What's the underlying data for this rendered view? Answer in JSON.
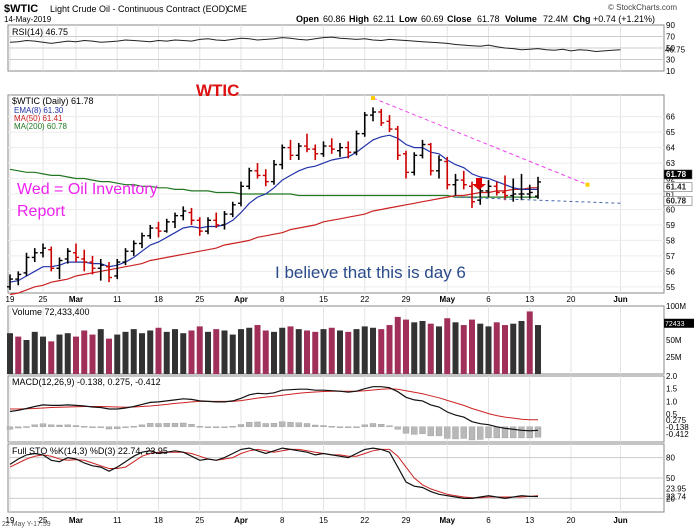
{
  "header": {
    "symbol": "$WTIC",
    "name": "Light Crude Oil - Continuous Contract (EOD)",
    "exchange": "CME",
    "date": "14-May-2019",
    "open_label": "Open",
    "open": "60.86",
    "high_label": "High",
    "high": "62.11",
    "low_label": "Low",
    "low": "60.69",
    "close_label": "Close",
    "close": "61.78",
    "volume_label": "Volume",
    "volume": "72.4M",
    "chg_label": "Chg",
    "chg": "+0.74 (+1.21%)",
    "credit": "© StockCharts.com",
    "footer_date": "22 May Y-17:59"
  },
  "annotations": {
    "wtic": "WTIC",
    "wed": "Wed = Oil Inventory",
    "report": "Report",
    "day6": "I believe that this is day 6"
  },
  "colors": {
    "up_bar": "#000000",
    "down_bar": "#cc0000",
    "ema8": "#2233aa",
    "ma50": "#cc2222",
    "ma200": "#227722",
    "vol_up": "#333333",
    "vol_down": "#a0305a",
    "trendline": "#ee44ee",
    "support": "#4466aa",
    "arrow": "#dd0000"
  },
  "chart_data": [
    {
      "type": "line",
      "title": "RSI(14) 46.75",
      "ylim": [
        10,
        90
      ],
      "y_ticks": [
        "90",
        "70",
        "50",
        "30",
        "10"
      ],
      "current_label": "46.75",
      "x": [
        0,
        1,
        2,
        3,
        4,
        5,
        6,
        7,
        8,
        9,
        10,
        11,
        12,
        13,
        14,
        15,
        16,
        17,
        18,
        19,
        20,
        21,
        22,
        23,
        24,
        25,
        26,
        27,
        28,
        29,
        30,
        31,
        32,
        33,
        34,
        35,
        36,
        37,
        38,
        39,
        40,
        41,
        42,
        43,
        44,
        45,
        46,
        47,
        48,
        49,
        50,
        51,
        52,
        53,
        54,
        55,
        56,
        57,
        58,
        59,
        60,
        61,
        62,
        63,
        64,
        65,
        66,
        67,
        68,
        69,
        70,
        71,
        72,
        73,
        74
      ],
      "values": [
        60,
        61,
        63,
        62,
        60,
        58,
        60,
        62,
        61,
        63,
        62,
        60,
        61,
        62,
        64,
        63,
        62,
        61,
        63,
        62,
        64,
        63,
        62,
        65,
        66,
        64,
        63,
        65,
        67,
        66,
        64,
        65,
        66,
        68,
        67,
        65,
        64,
        66,
        68,
        69,
        67,
        66,
        65,
        66,
        64,
        63,
        65,
        64,
        63,
        62,
        61,
        60,
        59,
        58,
        56,
        55,
        54,
        53,
        55,
        52,
        50,
        49,
        47,
        48,
        49,
        47,
        46,
        48,
        45,
        47,
        46,
        44,
        45,
        46,
        47
      ]
    },
    {
      "type": "bar",
      "title": "$WTIC (Daily) 61.78",
      "legend": [
        "EMA(8) 61.30",
        "MA(50) 61.41",
        "MA(200) 60.78"
      ],
      "ylim": [
        54.6,
        67.4
      ],
      "y_ticks": [
        "66",
        "65",
        "64",
        "63",
        "62",
        "61",
        "60",
        "59",
        "58",
        "57",
        "56",
        "55"
      ],
      "price_labels": [
        "61.78",
        "61.41",
        "60.78"
      ],
      "x_labels": [
        "19",
        "25",
        "Mar",
        "11",
        "18",
        "25",
        "Apr",
        "8",
        "15",
        "22",
        "29",
        "May",
        "6",
        "13",
        "20",
        "Jun"
      ],
      "x_label_index": [
        0,
        4,
        8,
        13,
        18,
        23,
        28,
        33,
        38,
        43,
        48,
        53,
        58,
        63,
        68,
        74
      ],
      "ohlc": [
        [
          55.0,
          55.8,
          54.8,
          55.5
        ],
        [
          55.5,
          56.0,
          55.1,
          55.8
        ],
        [
          55.9,
          57.2,
          55.7,
          56.9
        ],
        [
          56.9,
          57.5,
          56.6,
          57.2
        ],
        [
          57.2,
          57.8,
          56.9,
          57.5
        ],
        [
          57.4,
          57.6,
          56.0,
          56.2
        ],
        [
          56.2,
          56.9,
          55.5,
          56.7
        ],
        [
          56.8,
          57.5,
          56.5,
          57.3
        ],
        [
          57.2,
          57.8,
          56.6,
          56.9
        ],
        [
          56.8,
          57.4,
          56.0,
          56.6
        ],
        [
          56.6,
          57.0,
          55.8,
          56.2
        ],
        [
          56.2,
          56.8,
          55.4,
          56.4
        ],
        [
          56.3,
          56.6,
          55.3,
          55.6
        ],
        [
          55.7,
          56.8,
          55.5,
          56.6
        ],
        [
          56.6,
          57.5,
          56.4,
          57.3
        ],
        [
          57.3,
          58.0,
          57.0,
          57.8
        ],
        [
          57.8,
          58.5,
          57.5,
          58.3
        ],
        [
          58.3,
          59.0,
          58.1,
          58.8
        ],
        [
          58.8,
          59.2,
          58.2,
          58.6
        ],
        [
          58.6,
          59.4,
          58.5,
          59.2
        ],
        [
          59.2,
          59.8,
          58.8,
          59.6
        ],
        [
          59.6,
          60.2,
          59.3,
          59.9
        ],
        [
          59.8,
          60.1,
          59.0,
          59.3
        ],
        [
          59.3,
          59.5,
          58.3,
          58.6
        ],
        [
          58.6,
          59.5,
          58.4,
          59.3
        ],
        [
          59.3,
          59.8,
          58.8,
          59.0
        ],
        [
          59.0,
          59.9,
          58.7,
          59.7
        ],
        [
          59.7,
          60.5,
          59.5,
          60.3
        ],
        [
          60.4,
          61.8,
          60.2,
          61.5
        ],
        [
          61.5,
          62.7,
          61.3,
          62.5
        ],
        [
          62.5,
          63.0,
          62.0,
          62.2
        ],
        [
          62.2,
          62.6,
          61.5,
          61.8
        ],
        [
          61.8,
          63.2,
          61.6,
          62.9
        ],
        [
          62.9,
          64.2,
          62.6,
          64.0
        ],
        [
          64.0,
          64.5,
          63.2,
          63.5
        ],
        [
          63.5,
          64.3,
          63.2,
          64.1
        ],
        [
          64.1,
          64.9,
          63.7,
          63.9
        ],
        [
          63.9,
          64.2,
          63.2,
          63.6
        ],
        [
          63.6,
          64.4,
          63.4,
          64.1
        ],
        [
          64.1,
          64.6,
          63.6,
          63.9
        ],
        [
          63.8,
          64.3,
          63.4,
          64.0
        ],
        [
          64.0,
          64.4,
          63.3,
          63.7
        ],
        [
          63.7,
          65.1,
          63.5,
          64.9
        ],
        [
          64.9,
          66.3,
          64.7,
          66.1
        ],
        [
          66.1,
          66.6,
          65.7,
          66.3
        ],
        [
          66.3,
          66.5,
          65.4,
          65.6
        ],
        [
          65.7,
          66.1,
          65.0,
          65.2
        ],
        [
          65.2,
          65.4,
          63.2,
          63.5
        ],
        [
          63.6,
          63.8,
          62.0,
          62.4
        ],
        [
          62.4,
          63.7,
          62.2,
          63.5
        ],
        [
          63.5,
          64.5,
          63.3,
          64.2
        ],
        [
          64.2,
          64.3,
          62.2,
          62.5
        ],
        [
          62.5,
          63.5,
          62.0,
          63.2
        ],
        [
          63.1,
          63.4,
          61.3,
          61.6
        ],
        [
          61.6,
          62.3,
          60.9,
          61.9
        ],
        [
          61.9,
          62.5,
          61.3,
          61.6
        ],
        [
          61.5,
          61.8,
          60.1,
          60.5
        ],
        [
          60.6,
          61.5,
          60.3,
          61.2
        ],
        [
          61.2,
          61.9,
          60.8,
          61.5
        ],
        [
          61.5,
          61.8,
          60.9,
          61.1
        ],
        [
          61.1,
          62.2,
          60.6,
          60.9
        ],
        [
          60.9,
          62.0,
          60.5,
          61.0
        ],
        [
          61.0,
          62.3,
          60.6,
          61.0
        ],
        [
          61.0,
          61.6,
          60.7,
          61.1
        ],
        [
          60.86,
          62.11,
          60.69,
          61.78
        ]
      ],
      "ema8": [
        55.3,
        55.4,
        55.7,
        56.0,
        56.3,
        56.3,
        56.4,
        56.6,
        56.6,
        56.6,
        56.5,
        56.5,
        56.3,
        56.4,
        56.6,
        56.9,
        57.3,
        57.7,
        57.9,
        58.2,
        58.5,
        58.8,
        58.9,
        58.8,
        58.9,
        58.9,
        59.0,
        59.3,
        59.8,
        60.4,
        60.8,
        61.0,
        61.4,
        61.9,
        62.2,
        62.5,
        62.7,
        62.8,
        63.0,
        63.2,
        63.3,
        63.4,
        63.7,
        64.1,
        64.5,
        64.7,
        64.8,
        64.6,
        64.2,
        64.0,
        64.0,
        63.7,
        63.6,
        63.2,
        62.9,
        62.7,
        62.3,
        62.1,
        62.0,
        61.8,
        61.6,
        61.4,
        61.3,
        61.3,
        61.3
      ],
      "ma50": [
        54.5,
        54.6,
        54.8,
        55.0,
        55.1,
        55.3,
        55.4,
        55.5,
        55.7,
        55.8,
        55.9,
        56.0,
        56.1,
        56.2,
        56.3,
        56.4,
        56.5,
        56.7,
        56.8,
        56.9,
        57.0,
        57.1,
        57.2,
        57.3,
        57.4,
        57.5,
        57.7,
        57.8,
        57.9,
        58.0,
        58.2,
        58.3,
        58.4,
        58.5,
        58.7,
        58.8,
        58.9,
        59.0,
        59.2,
        59.3,
        59.4,
        59.5,
        59.6,
        59.7,
        59.9,
        60.0,
        60.1,
        60.2,
        60.3,
        60.4,
        60.5,
        60.6,
        60.7,
        60.8,
        60.9,
        60.9,
        61.0,
        61.1,
        61.1,
        61.2,
        61.2,
        61.3,
        61.3,
        61.4,
        61.41
      ],
      "ma200": [
        62.6,
        62.5,
        62.4,
        62.4,
        62.3,
        62.2,
        62.2,
        62.1,
        62.0,
        62.0,
        61.9,
        61.8,
        61.8,
        61.7,
        61.6,
        61.6,
        61.5,
        61.5,
        61.4,
        61.4,
        61.3,
        61.3,
        61.2,
        61.2,
        61.2,
        61.1,
        61.1,
        61.1,
        61.0,
        61.0,
        61.0,
        61.0,
        61.0,
        61.0,
        61.0,
        60.9,
        60.9,
        60.9,
        60.9,
        60.9,
        60.9,
        60.9,
        60.9,
        60.9,
        60.9,
        60.9,
        60.9,
        60.9,
        60.9,
        60.9,
        60.9,
        60.9,
        60.9,
        60.9,
        60.8,
        60.8,
        60.8,
        60.8,
        60.8,
        60.8,
        60.8,
        60.8,
        60.8,
        60.8,
        60.78
      ],
      "trendline": [
        [
          44,
          67.2
        ],
        [
          70,
          61.6
        ]
      ],
      "support_line": [
        [
          54,
          60.8
        ],
        [
          74,
          60.4
        ]
      ]
    },
    {
      "type": "bar",
      "title": "Volume 72,433,400",
      "ylim": [
        0,
        100
      ],
      "y_ticks": [
        "100M",
        "75M",
        "50M",
        "25M"
      ],
      "current_label": "72433",
      "values": [
        60,
        55,
        50,
        62,
        55,
        48,
        58,
        60,
        55,
        64,
        58,
        66,
        52,
        58,
        62,
        66,
        60,
        64,
        68,
        62,
        66,
        60,
        64,
        70,
        62,
        66,
        64,
        58,
        66,
        68,
        72,
        64,
        62,
        68,
        70,
        66,
        64,
        62,
        66,
        68,
        64,
        62,
        66,
        70,
        68,
        66,
        72,
        84,
        80,
        76,
        78,
        74,
        70,
        82,
        76,
        72,
        80,
        74,
        70,
        76,
        72,
        74,
        78,
        92,
        72
      ],
      "down": [
        0,
        1,
        0,
        0,
        0,
        1,
        0,
        0,
        1,
        1,
        1,
        0,
        1,
        0,
        0,
        0,
        0,
        0,
        1,
        0,
        0,
        0,
        1,
        1,
        0,
        1,
        0,
        0,
        0,
        0,
        1,
        1,
        0,
        0,
        1,
        0,
        1,
        1,
        0,
        1,
        0,
        1,
        0,
        0,
        0,
        1,
        1,
        1,
        1,
        0,
        0,
        1,
        0,
        1,
        0,
        1,
        1,
        0,
        0,
        1,
        1,
        0,
        0,
        1,
        0
      ]
    },
    {
      "type": "line",
      "title": "MACD(12,26,9) -0.138, 0.275, -0.412",
      "ylim": [
        -0.6,
        2.0
      ],
      "y_ticks": [
        "2.0",
        "1.5",
        "1.0",
        "0.5"
      ],
      "value_labels": [
        "0.275",
        "-0.138",
        "-0.412"
      ],
      "macd": [
        0.6,
        0.65,
        0.72,
        0.8,
        0.86,
        0.84,
        0.84,
        0.86,
        0.84,
        0.82,
        0.78,
        0.76,
        0.7,
        0.7,
        0.74,
        0.8,
        0.88,
        0.96,
        0.98,
        1.02,
        1.06,
        1.1,
        1.08,
        1.02,
        1.0,
        0.98,
        0.98,
        1.02,
        1.12,
        1.26,
        1.32,
        1.3,
        1.34,
        1.44,
        1.46,
        1.48,
        1.48,
        1.44,
        1.44,
        1.42,
        1.4,
        1.36,
        1.4,
        1.5,
        1.58,
        1.58,
        1.54,
        1.38,
        1.16,
        1.06,
        1.02,
        0.86,
        0.78,
        0.58,
        0.46,
        0.38,
        0.2,
        0.12,
        0.08,
        0.0,
        -0.06,
        -0.1,
        -0.14,
        -0.16,
        -0.138
      ],
      "signal": [
        0.7,
        0.7,
        0.71,
        0.72,
        0.74,
        0.76,
        0.77,
        0.78,
        0.79,
        0.8,
        0.8,
        0.8,
        0.79,
        0.78,
        0.77,
        0.78,
        0.8,
        0.82,
        0.85,
        0.88,
        0.92,
        0.95,
        0.98,
        1.0,
        1.0,
        1.0,
        1.0,
        1.0,
        1.03,
        1.08,
        1.13,
        1.17,
        1.2,
        1.24,
        1.28,
        1.32,
        1.35,
        1.37,
        1.39,
        1.4,
        1.4,
        1.4,
        1.4,
        1.42,
        1.45,
        1.48,
        1.5,
        1.48,
        1.42,
        1.36,
        1.3,
        1.22,
        1.14,
        1.04,
        0.94,
        0.84,
        0.72,
        0.62,
        0.52,
        0.44,
        0.38,
        0.34,
        0.3,
        0.28,
        0.275
      ],
      "histogram": [
        -0.1,
        -0.05,
        0.01,
        0.08,
        0.12,
        0.08,
        0.07,
        0.08,
        0.05,
        0.02,
        -0.02,
        -0.04,
        -0.09,
        -0.08,
        -0.03,
        0.02,
        0.08,
        0.14,
        0.13,
        0.14,
        0.14,
        0.15,
        0.1,
        0.02,
        0.0,
        -0.02,
        -0.02,
        0.02,
        0.09,
        0.18,
        0.19,
        0.13,
        0.14,
        0.2,
        0.18,
        0.16,
        0.13,
        0.07,
        0.05,
        0.02,
        0.0,
        -0.04,
        0.0,
        0.08,
        0.13,
        0.1,
        0.04,
        -0.1,
        -0.26,
        -0.3,
        -0.28,
        -0.36,
        -0.36,
        -0.46,
        -0.48,
        -0.46,
        -0.52,
        -0.5,
        -0.44,
        -0.44,
        -0.44,
        -0.44,
        -0.44,
        -0.44,
        -0.412
      ]
    },
    {
      "type": "line",
      "title": "Full STO %K(14,3) %D(3) 22.74, 23.95",
      "ylim": [
        0,
        100
      ],
      "y_ticks": [
        "80",
        "50",
        "20"
      ],
      "value_labels": [
        "23.95",
        "22.74"
      ],
      "k": [
        70,
        78,
        84,
        86,
        84,
        76,
        74,
        80,
        78,
        72,
        68,
        66,
        60,
        66,
        74,
        82,
        88,
        90,
        86,
        88,
        90,
        88,
        82,
        76,
        78,
        76,
        80,
        86,
        92,
        94,
        90,
        86,
        90,
        94,
        92,
        90,
        88,
        84,
        86,
        84,
        82,
        80,
        86,
        92,
        94,
        92,
        88,
        66,
        44,
        38,
        36,
        30,
        26,
        24,
        22,
        20,
        20,
        22,
        24,
        22,
        20,
        22,
        24,
        23,
        22.74
      ],
      "d": [
        66,
        72,
        78,
        82,
        84,
        82,
        78,
        76,
        77,
        76,
        72,
        68,
        64,
        64,
        66,
        74,
        82,
        86,
        88,
        88,
        88,
        88,
        86,
        82,
        78,
        76,
        78,
        80,
        86,
        90,
        92,
        90,
        88,
        90,
        92,
        92,
        90,
        88,
        86,
        84,
        84,
        82,
        82,
        86,
        90,
        92,
        92,
        82,
        66,
        50,
        40,
        34,
        30,
        26,
        24,
        22,
        21,
        21,
        22,
        22,
        22,
        22,
        22,
        23,
        23.95
      ]
    }
  ]
}
